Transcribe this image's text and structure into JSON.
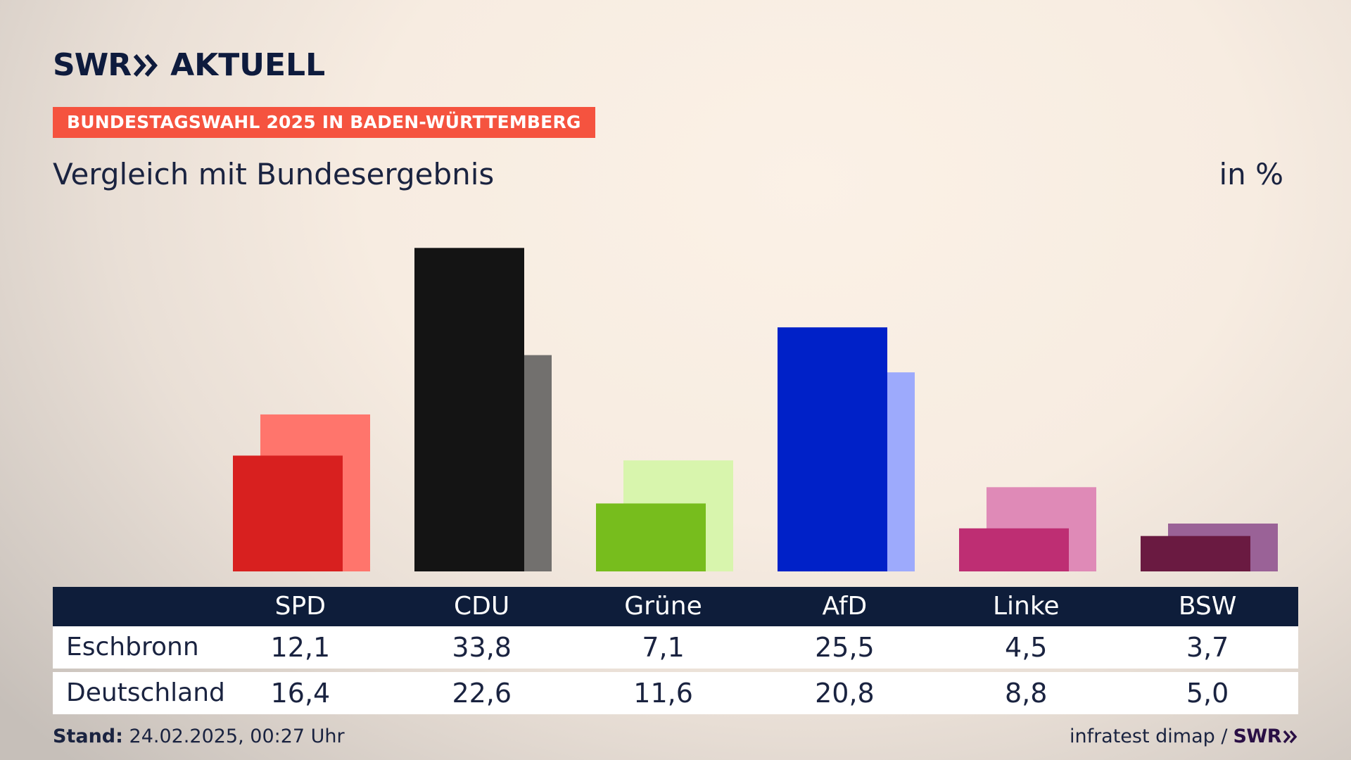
{
  "header": {
    "logo_left": "SWR",
    "logo_right": "AKTUELL",
    "tag": "BUNDESTAGSWAHL 2025 IN BADEN-WÜRTTEMBERG",
    "subtitle": "Vergleich mit Bundesergebnis",
    "unit": "in %"
  },
  "table": {
    "rows": [
      {
        "label": "Eschbronn",
        "values": [
          "12,1",
          "33,8",
          "7,1",
          "25,5",
          "4,5",
          "3,7"
        ]
      },
      {
        "label": "Deutschland",
        "values": [
          "16,4",
          "22,6",
          "11,6",
          "20,8",
          "8,8",
          "5,0"
        ]
      }
    ]
  },
  "footer": {
    "stand_label": "Stand:",
    "stand_value": "24.02.2025, 00:27 Uhr",
    "source": "infratest dimap /",
    "source_logo": "SWR"
  },
  "chart_data": {
    "type": "bar",
    "categories": [
      "SPD",
      "CDU",
      "Grüne",
      "AfD",
      "Linke",
      "BSW"
    ],
    "series": [
      {
        "name": "Eschbronn",
        "values": [
          12.1,
          33.8,
          7.1,
          25.5,
          4.5,
          3.7
        ]
      },
      {
        "name": "Deutschland",
        "values": [
          16.4,
          22.6,
          11.6,
          20.8,
          8.8,
          5.0
        ]
      }
    ],
    "colors": {
      "primary": [
        "#d8201f",
        "#141414",
        "#77bd1d",
        "#0021c8",
        "#be2e73",
        "#6a1a41"
      ],
      "secondary": [
        "#ff756c",
        "#72706e",
        "#d8f5ad",
        "#9daafc",
        "#df8ab7",
        "#9a6297"
      ]
    },
    "ylim": [
      0,
      35
    ],
    "grid": false,
    "legend": "table-below"
  }
}
